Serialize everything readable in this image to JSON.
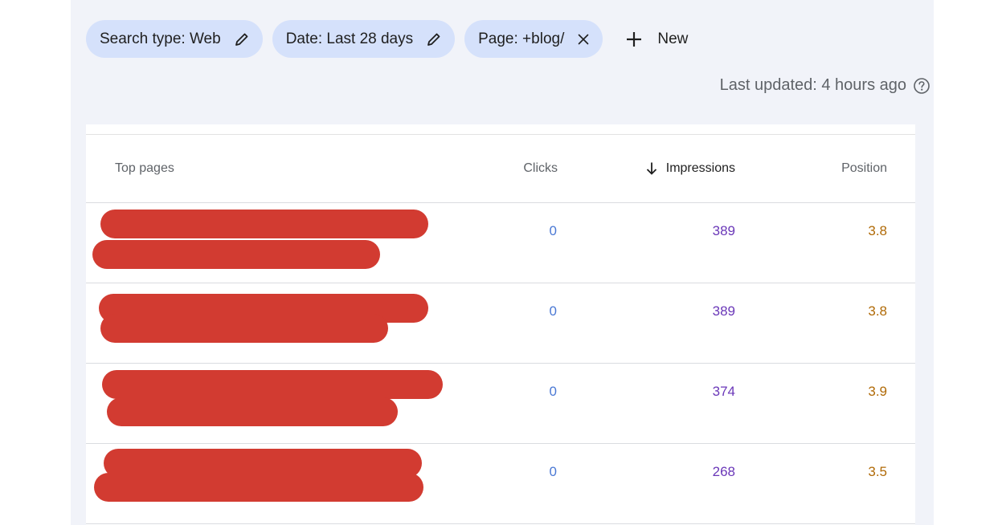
{
  "filters": [
    {
      "label": "Search type: Web",
      "icon": "pencil-icon"
    },
    {
      "label": "Date: Last 28 days",
      "icon": "pencil-icon"
    },
    {
      "label": "Page: +blog/",
      "icon": "close-icon"
    }
  ],
  "new_button": {
    "label": "New",
    "icon": "plus-icon"
  },
  "last_updated": "Last updated: 4 hours ago",
  "table": {
    "headers": {
      "top_pages": "Top pages",
      "clicks": "Clicks",
      "impressions": "Impressions",
      "position": "Position"
    },
    "sort": {
      "column": "impressions",
      "direction": "descending"
    },
    "rows": [
      {
        "clicks": "0",
        "impressions": "389",
        "position": "3.8"
      },
      {
        "clicks": "0",
        "impressions": "389",
        "position": "3.8"
      },
      {
        "clicks": "0",
        "impressions": "374",
        "position": "3.9"
      },
      {
        "clicks": "0",
        "impressions": "268",
        "position": "3.5"
      }
    ]
  },
  "colors": {
    "chip_bg": "#d5e1fb",
    "panel_bg": "#f1f3f9",
    "redaction": "#d23b31",
    "clicks": "#4a78d4",
    "impressions": "#6a37b8",
    "position": "#b06a07"
  }
}
